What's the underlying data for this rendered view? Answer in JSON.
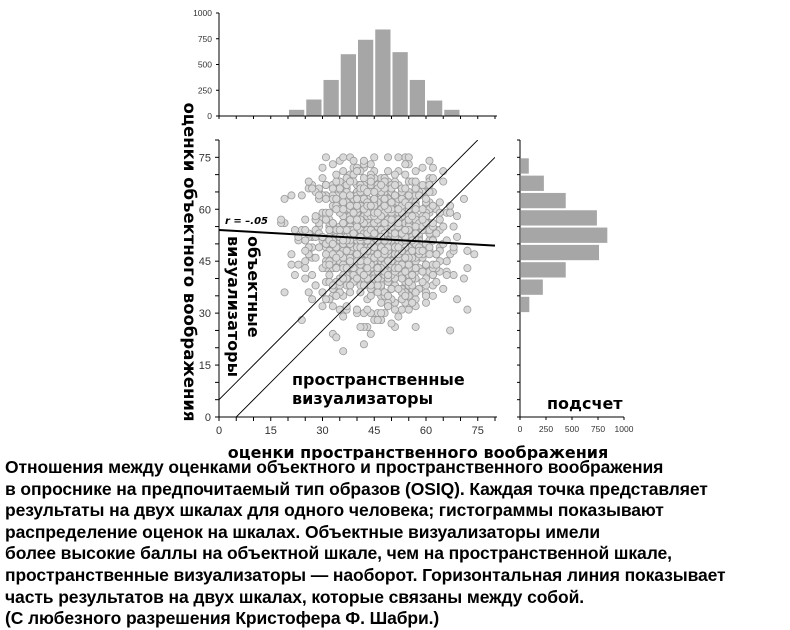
{
  "chart_data": [
    {
      "type": "scatter",
      "name": "main",
      "xlabel": "оценки пространственного воображения",
      "ylabel": "оценки объектного воображения",
      "xlim": [
        0,
        80
      ],
      "ylim": [
        0,
        80
      ],
      "xticks": [
        0,
        15,
        30,
        45,
        60,
        75
      ],
      "yticks": [
        0,
        15,
        30,
        45,
        60,
        75
      ],
      "regression": {
        "label": "r = –.05",
        "r": -0.05,
        "x": [
          0,
          80
        ],
        "y": [
          54,
          49.5
        ]
      },
      "diagonals": [
        {
          "x": [
            0,
            75
          ],
          "y": [
            5,
            80
          ]
        },
        {
          "x": [
            5,
            80
          ],
          "y": [
            0,
            75
          ]
        }
      ],
      "annotations": {
        "object_visualizers": [
          "объектные",
          "визуализаторы"
        ],
        "spatial_visualizers": [
          "пространственные",
          "визуализаторы"
        ]
      },
      "marker_color": "#d9d9d9"
    },
    {
      "type": "bar",
      "name": "top-histogram",
      "bin_width": 5,
      "bin_starts": [
        20,
        25,
        30,
        35,
        40,
        45,
        50,
        55,
        60,
        65
      ],
      "values": [
        60,
        160,
        350,
        600,
        740,
        840,
        620,
        350,
        150,
        60
      ],
      "ylim": [
        0,
        1000
      ],
      "yticks": [
        0,
        250,
        500,
        750,
        1000
      ],
      "bar_color": "#a6a6a6"
    },
    {
      "type": "bar",
      "name": "right-histogram",
      "orientation": "horizontal",
      "bin_width": 5,
      "bin_starts": [
        70,
        65,
        60,
        55,
        50,
        45,
        40,
        35,
        30
      ],
      "values": [
        75,
        220,
        430,
        730,
        830,
        750,
        430,
        210,
        80
      ],
      "xlim": [
        0,
        1000
      ],
      "xticks": [
        0,
        250,
        500,
        750,
        1000
      ],
      "xlabel": "подсчет",
      "bar_color": "#a6a6a6"
    }
  ],
  "caption": [
    "Отношения между оценками объектного и пространственного воображения",
    "в опроснике на предпочитаемый тип образов (OSIQ). Каждая точка представляет",
    "результаты на двух шкалах для одного человека; гистограммы показывают",
    "распределение оценок на шкалах. Объектные визуализаторы имели",
    "более высокие баллы на объектной шкале, чем на пространственной шкале,",
    "пространственные визуализаторы — наоборот. Горизонтальная линия показывает",
    "часть результатов на двух шкалах, которые связаны между собой.",
    "(С любезного разрешения Кристофера Ф. Шабри.)"
  ]
}
